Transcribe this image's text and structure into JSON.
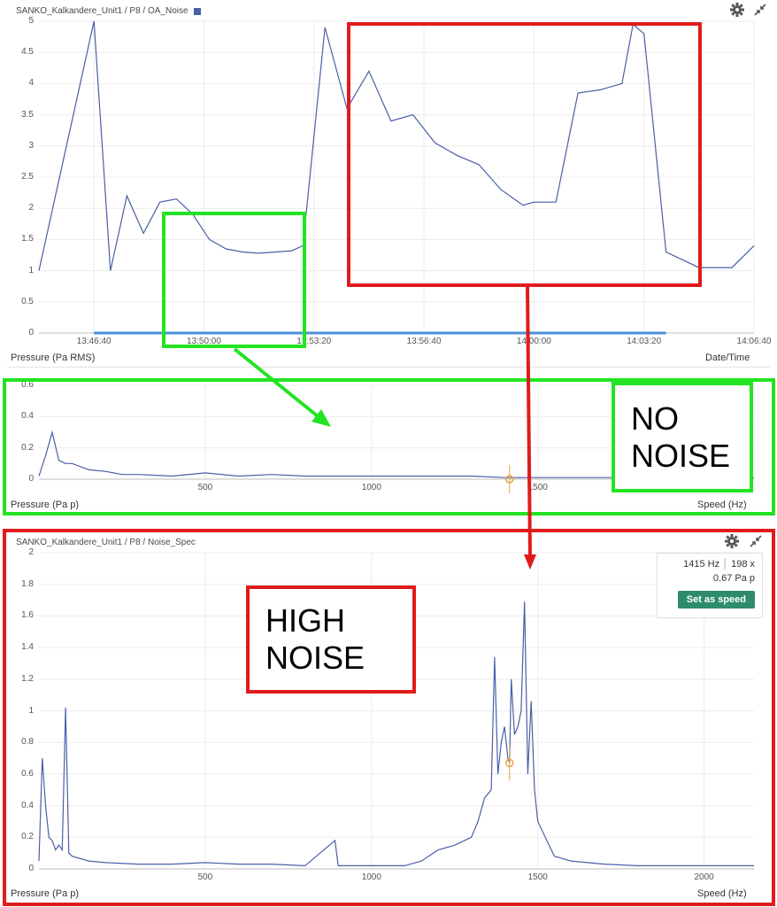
{
  "panels": {
    "top": {
      "title": "SANKO_Kalkandere_Unit1 / P8 / OA_Noise",
      "y_axis_name": "Pressure (Pa RMS)",
      "x_axis_name": "Date/Time"
    },
    "middle": {
      "y_axis_name": "Pressure (Pa p)",
      "x_axis_name": "Speed (Hz)"
    },
    "bottom": {
      "title": "SANKO_Kalkandere_Unit1 / P8 / Noise_Spec",
      "y_axis_name": "Pressure (Pa p)",
      "x_axis_name": "Speed (Hz)",
      "tooltip": {
        "freq": "1415 Hz",
        "order": "198 x",
        "value": "0.67 Pa p",
        "button": "Set as speed"
      }
    }
  },
  "annotations": {
    "no_noise": [
      "NO",
      "NOISE"
    ],
    "high_noise": [
      "HIGH",
      "NOISE"
    ]
  },
  "colors": {
    "series": "#4a5fa8",
    "green": "#22e422",
    "red": "#e01b1b",
    "cursor": "#e8a33a",
    "button": "#2e8b6e"
  },
  "icons": [
    "gear-icon",
    "collapse-icon"
  ],
  "chart_data": [
    {
      "type": "line",
      "series": [
        {
          "name": "",
          "x": [
            "13:45:00",
            "13:46:40",
            "13:47:10",
            "13:47:40",
            "13:48:10",
            "13:48:40",
            "13:49:10",
            "13:49:40",
            "13:50:10",
            "13:50:40",
            "13:51:10",
            "13:51:40",
            "13:52:10",
            "13:52:40",
            "13:53:00",
            "13:53:40",
            "13:54:20",
            "13:55:00",
            "13:55:40",
            "13:56:20",
            "13:57:00",
            "13:57:40",
            "13:58:20",
            "13:59:00",
            "13:59:40",
            "14:00:00",
            "14:00:40",
            "14:01:20",
            "14:02:00",
            "14:02:20",
            "14:02:40",
            "14:03:00",
            "14:03:20",
            "14:04:00",
            "14:05:00",
            "14:06:00",
            "14:06:40"
          ],
          "values": [
            1.0,
            5.0,
            1.0,
            2.2,
            1.6,
            2.1,
            2.15,
            1.9,
            1.5,
            1.35,
            1.3,
            1.28,
            1.3,
            1.32,
            1.4,
            4.9,
            3.6,
            4.2,
            3.4,
            3.5,
            3.05,
            2.85,
            2.7,
            2.3,
            2.05,
            2.1,
            2.1,
            3.85,
            3.9,
            3.95,
            4.0,
            4.95,
            4.8,
            1.3,
            1.05,
            1.05,
            1.4
          ]
        }
      ],
      "xlabel": "Date/Time",
      "ylabel": "Pressure (Pa RMS)",
      "x_ticks": [
        "13:46:40",
        "13:50:00",
        "13:53:20",
        "13:56:40",
        "14:00:00",
        "14:03:20",
        "14:06:40"
      ],
      "y_ticks": [
        0,
        0.5,
        1,
        1.5,
        2,
        2.5,
        3,
        3.5,
        4,
        4.5,
        5
      ],
      "ylim": [
        0,
        5
      ],
      "grid": true
    },
    {
      "type": "line",
      "x": [
        0,
        20,
        40,
        60,
        80,
        100,
        150,
        200,
        250,
        300,
        400,
        500,
        600,
        700,
        800,
        900,
        1000,
        1100,
        1200,
        1300,
        1400,
        1415,
        1500,
        1600,
        1700,
        1800,
        1900,
        2000,
        2100,
        2150
      ],
      "series": [
        {
          "name": "",
          "values": [
            0.02,
            0.15,
            0.3,
            0.12,
            0.1,
            0.1,
            0.06,
            0.05,
            0.03,
            0.03,
            0.02,
            0.04,
            0.02,
            0.03,
            0.02,
            0.02,
            0.02,
            0.02,
            0.02,
            0.02,
            0.01,
            0.01,
            0.01,
            0.01,
            0.01,
            0.01,
            0.01,
            0.01,
            0.01,
            0.01
          ]
        }
      ],
      "xlabel": "Speed (Hz)",
      "ylabel": "Pressure (Pa p)",
      "x_ticks": [
        500,
        1000,
        1500
      ],
      "y_ticks": [
        0,
        0.2,
        0.4,
        0.6
      ],
      "ylim": [
        0,
        0.6
      ],
      "cursor_x": 1415,
      "grid": true
    },
    {
      "type": "line",
      "x": [
        0,
        10,
        20,
        30,
        40,
        50,
        60,
        70,
        80,
        90,
        100,
        150,
        200,
        300,
        400,
        500,
        600,
        700,
        800,
        890,
        900,
        1000,
        1100,
        1150,
        1200,
        1250,
        1300,
        1320,
        1340,
        1360,
        1370,
        1380,
        1390,
        1400,
        1410,
        1415,
        1420,
        1430,
        1440,
        1450,
        1460,
        1470,
        1480,
        1490,
        1500,
        1550,
        1600,
        1700,
        1800,
        1900,
        2000,
        2100,
        2150
      ],
      "series": [
        {
          "name": "",
          "values": [
            0.05,
            0.7,
            0.4,
            0.2,
            0.18,
            0.12,
            0.15,
            0.12,
            1.02,
            0.1,
            0.08,
            0.05,
            0.04,
            0.03,
            0.03,
            0.04,
            0.03,
            0.03,
            0.02,
            0.18,
            0.02,
            0.02,
            0.02,
            0.05,
            0.12,
            0.15,
            0.2,
            0.3,
            0.45,
            0.5,
            1.34,
            0.6,
            0.8,
            0.9,
            0.7,
            0.67,
            1.2,
            0.85,
            0.9,
            1.0,
            1.69,
            0.6,
            1.06,
            0.5,
            0.3,
            0.08,
            0.05,
            0.03,
            0.02,
            0.02,
            0.02,
            0.02,
            0.02
          ]
        }
      ],
      "xlabel": "Speed (Hz)",
      "ylabel": "Pressure (Pa p)",
      "x_ticks": [
        500,
        1000,
        1500,
        2000
      ],
      "y_ticks": [
        0,
        0.2,
        0.4,
        0.6,
        0.8,
        1,
        1.2,
        1.4,
        1.6,
        1.8,
        2
      ],
      "ylim": [
        0,
        2
      ],
      "cursor_x": 1415,
      "cursor_y": 0.67,
      "grid": true
    }
  ]
}
